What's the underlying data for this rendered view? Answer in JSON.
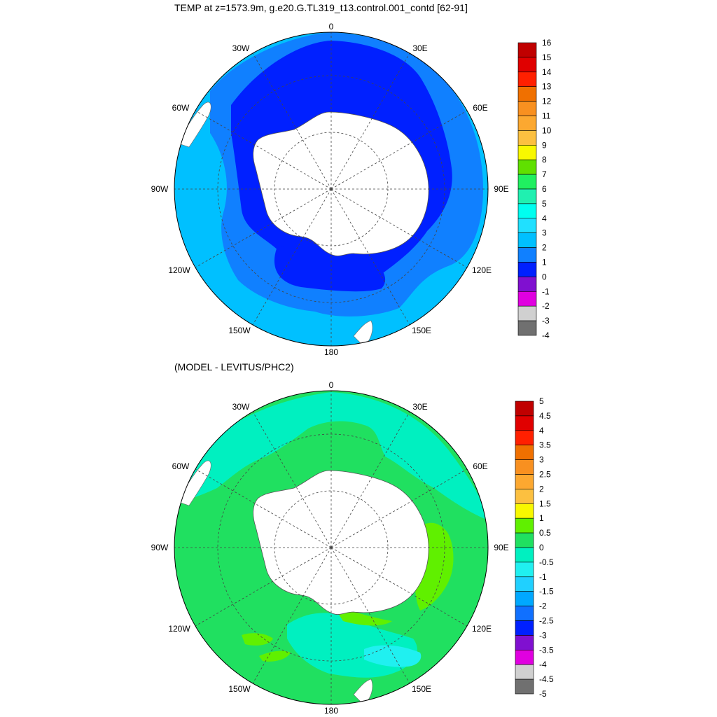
{
  "top_panel": {
    "title": "TEMP at z=1573.9m, g.e20.G.TL319_t13.control.001_contd [62-91]",
    "lon_labels": [
      "0",
      "30E",
      "60E",
      "90E",
      "120E",
      "150E",
      "180",
      "150W",
      "120W",
      "90W",
      "60W",
      "30W"
    ],
    "colorbar": {
      "labels": [
        "16",
        "15",
        "14",
        "13",
        "12",
        "11",
        "10",
        "9",
        "8",
        "7",
        "6",
        "5",
        "4",
        "3",
        "2",
        "1",
        "0",
        "-1",
        "-2",
        "-3",
        "-4"
      ],
      "colors": [
        "#c00000",
        "#e00000",
        "#ff2000",
        "#f07000",
        "#f89020",
        "#fca830",
        "#fcc040",
        "#f8f800",
        "#60e000",
        "#20f060",
        "#20f0b0",
        "#00fff0",
        "#20e0ff",
        "#00c0ff",
        "#1080ff",
        "#0020ff",
        "#8010d0",
        "#e000e0",
        "#d0d0d0",
        "#707070"
      ]
    }
  },
  "bottom_panel": {
    "title": "(MODEL - LEVITUS/PHC2)",
    "lon_labels": [
      "0",
      "30E",
      "60E",
      "90E",
      "120E",
      "150E",
      "180",
      "150W",
      "120W",
      "90W",
      "60W",
      "30W"
    ],
    "colorbar": {
      "labels": [
        "5",
        "4.5",
        "4",
        "3.5",
        "3",
        "2.5",
        "2",
        "1.5",
        "1",
        "0.5",
        "0",
        "-0.5",
        "-1",
        "-1.5",
        "-2",
        "-2.5",
        "-3",
        "-3.5",
        "-4",
        "-4.5",
        "-5"
      ],
      "colors": [
        "#c00000",
        "#e00000",
        "#ff2000",
        "#f07000",
        "#f89020",
        "#fca830",
        "#fcc040",
        "#f8f800",
        "#60f000",
        "#20e060",
        "#00f0c0",
        "#20f0f0",
        "#20d0ff",
        "#00a8ff",
        "#1070ff",
        "#0020ff",
        "#8010d0",
        "#e000e0",
        "#d0d0d0",
        "#707070"
      ]
    }
  }
}
